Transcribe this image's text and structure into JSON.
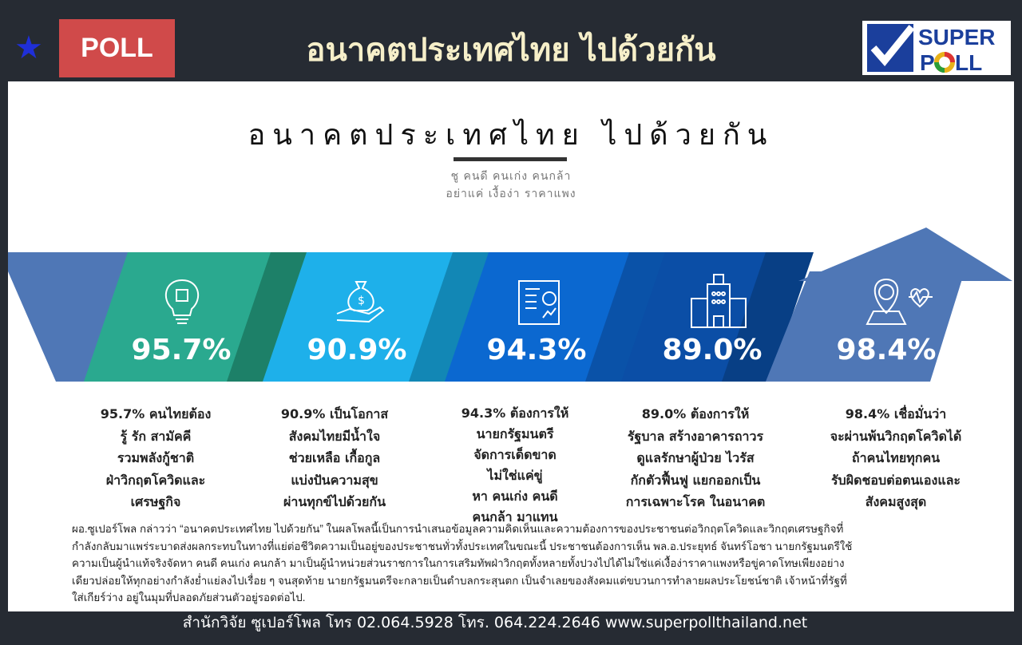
{
  "header": {
    "star_icon": "star-icon",
    "badge": "POLL",
    "title": "อนาคตประเทศไทย  ไปด้วยกัน",
    "logo_text": [
      "SUPER",
      "POLL"
    ]
  },
  "card": {
    "title": "อนาคตประเทศไทย ไปด้วยกัน",
    "subtitle_lines": [
      "ชู คนดี คนเก่ง คนกล้า",
      "อย่าแค่ เงื้อง่า ราคาแพง"
    ]
  },
  "colors": {
    "background": "#262b33",
    "poll_badge": "#d04a4a",
    "header_title": "#f6efc9",
    "segments": [
      "#2aa98f",
      "#1eb0ea",
      "#0b68d0",
      "#0b4ea6",
      "#4f77b6"
    ],
    "folds": [
      "#1d8068",
      "#1287b5",
      "#0a52a8",
      "#083f85"
    ]
  },
  "items": [
    {
      "icon": "lightbulb-chip-icon",
      "percent": "95.7%",
      "lines": [
        "95.7% คนไทยต้อง",
        "รู้ รัก สามัคคี",
        "รวมพลังกู้ชาติ",
        "ฝ่าวิกฤตโควิดและ",
        "เศรษฐกิจ"
      ]
    },
    {
      "icon": "money-bag-hand-icon",
      "percent": "90.9%",
      "lines": [
        "90.9% เป็นโอกาส",
        "สังคมไทยมีน้ำใจ",
        "ช่วยเหลือ เกื้อกูล",
        "แบ่งปันความสุข",
        "ผ่านทุกข์ไปด้วยกัน"
      ]
    },
    {
      "icon": "report-chart-icon",
      "percent": "94.3%",
      "lines": [
        "94.3% ต้องการให้",
        "นายกรัฐมนตรี",
        "จัดการเด็ดขาด",
        "ไม่ใช่แค่ขู่",
        "หา คนเก่ง คนดี",
        "คนกล้า มาแทน"
      ]
    },
    {
      "icon": "hospital-building-icon",
      "percent": "89.0%",
      "lines": [
        "89.0% ต้องการให้",
        "รัฐบาล สร้างอาคารถาวร",
        "ดูแลรักษาผู้ป่วย ไวรัส",
        "กักตัวฟื้นฟู แยกออกเป็น",
        "การเฉพาะโรค ในอนาคต"
      ]
    },
    {
      "icon": "location-money-heartbeat-icon",
      "percent": "98.4%",
      "lines": [
        "98.4% เชื่อมั่นว่า",
        "จะผ่านพ้นวิกฤตโควิดได้",
        "ถ้าคนไทยทุกคน",
        "รับผิดชอบต่อตนเองและ",
        "สังคมสูงสุด"
      ]
    }
  ],
  "paragraph_lines": [
    "ผอ.ซูเปอร์โพล  กล่าวว่า  “อนาคตประเทศไทย  ไปด้วยกัน”  ในผลโพลนี้เป็นการนำเสนอข้อมูลความคิดเห็นและความต้องการของประชาชนต่อวิกฤตโควิดและวิกฤตเศรษฐกิจที่",
    "กำลังกลับมาแพร่ระบาดส่งผลกระทบในทางที่แย่ต่อชีวิตความเป็นอยู่ของประชาชนทั่วทั้งประเทศในขณะนี้ ประชาชนต้องการเห็น พล.อ.ประยุทธ์  จันทร์โอชา นายกรัฐมนตรีใช้",
    "ความเป็นผู้นำแท้จริงจัดหา  คนดี  คนเก่ง  คนกล้า  มาเป็นผู้นำหน่วยส่วนราชการในการเสริมทัพฝ่าวิกฤตทั้งหลายทั้งปวงไปได้ไม่ใช่แค่เงื้อง่าราคาแพงหรือขู่คาดโทษเพียงอย่าง",
    "เดียวปล่อยให้ทุกอย่างกำลังย่ำแย่ลงไปเรื่อย ๆ จนสุดท้าย นายกรัฐมนตรีจะกลายเป็นตำบลกระสุนตก เป็นจำเลยของสังคมแต่ขบวนการทำลายผลประโยชน์ชาติ เจ้าหน้าที่รัฐที่",
    "ใส่เกียร์ว่าง อยู่ในมุมที่ปลอดภัยส่วนตัวอยู่รอดต่อไป."
  ],
  "footer": "สำนักวิจัย ซูเปอร์โพล โทร 02.064.5928  โทร. 064.224.2646 www.superpollthailand.net"
}
